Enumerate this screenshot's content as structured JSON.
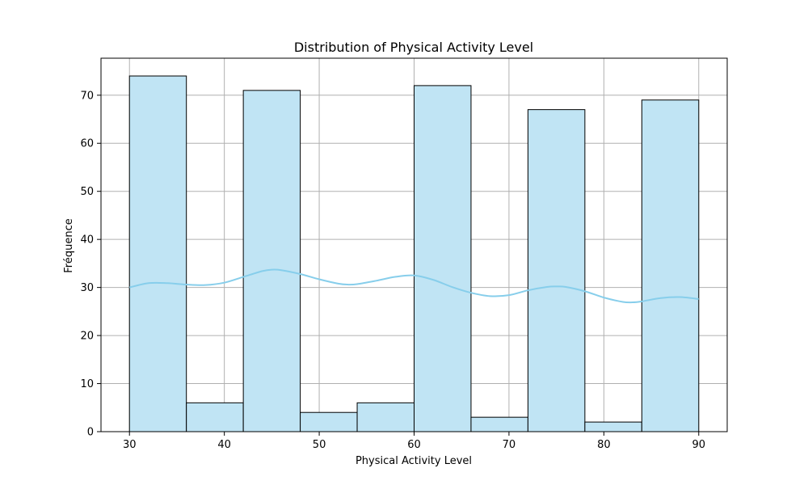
{
  "chart_data": {
    "type": "bar",
    "title": "Distribution of Physical Activity Level",
    "xlabel": "Physical Activity Level",
    "ylabel": "Fréquence",
    "xlim": [
      27,
      93
    ],
    "ylim": [
      0,
      77.7
    ],
    "xticks": [
      30,
      40,
      50,
      60,
      70,
      80,
      90
    ],
    "yticks": [
      0,
      10,
      20,
      30,
      40,
      50,
      60,
      70
    ],
    "grid": true,
    "bar_color": "#c0e4f4",
    "bar_edge_color": "#000000",
    "kde_color": "#87ceeb",
    "bins": [
      {
        "x0": 30,
        "x1": 36,
        "count": 74
      },
      {
        "x0": 36,
        "x1": 42,
        "count": 6
      },
      {
        "x0": 42,
        "x1": 48,
        "count": 71
      },
      {
        "x0": 48,
        "x1": 54,
        "count": 4
      },
      {
        "x0": 54,
        "x1": 60,
        "count": 6
      },
      {
        "x0": 60,
        "x1": 66,
        "count": 72
      },
      {
        "x0": 66,
        "x1": 72,
        "count": 3
      },
      {
        "x0": 72,
        "x1": 78,
        "count": 67
      },
      {
        "x0": 78,
        "x1": 84,
        "count": 2
      },
      {
        "x0": 84,
        "x1": 90,
        "count": 69
      }
    ],
    "kde": {
      "x": [
        30,
        32,
        34,
        36,
        38,
        40,
        42,
        44,
        45,
        46,
        48,
        50,
        52,
        53,
        54,
        56,
        58,
        60,
        62,
        64,
        66,
        68,
        70,
        72,
        74,
        75,
        76,
        78,
        80,
        82,
        83,
        84,
        86,
        88,
        90
      ],
      "y": [
        30.0,
        30.9,
        30.9,
        30.6,
        30.5,
        31.0,
        32.2,
        33.4,
        33.7,
        33.6,
        32.8,
        31.7,
        30.8,
        30.6,
        30.7,
        31.4,
        32.2,
        32.5,
        31.6,
        30.1,
        28.9,
        28.2,
        28.4,
        29.4,
        30.1,
        30.2,
        30.1,
        29.2,
        27.9,
        27.0,
        26.9,
        27.1,
        27.8,
        28.0,
        27.6
      ]
    }
  }
}
